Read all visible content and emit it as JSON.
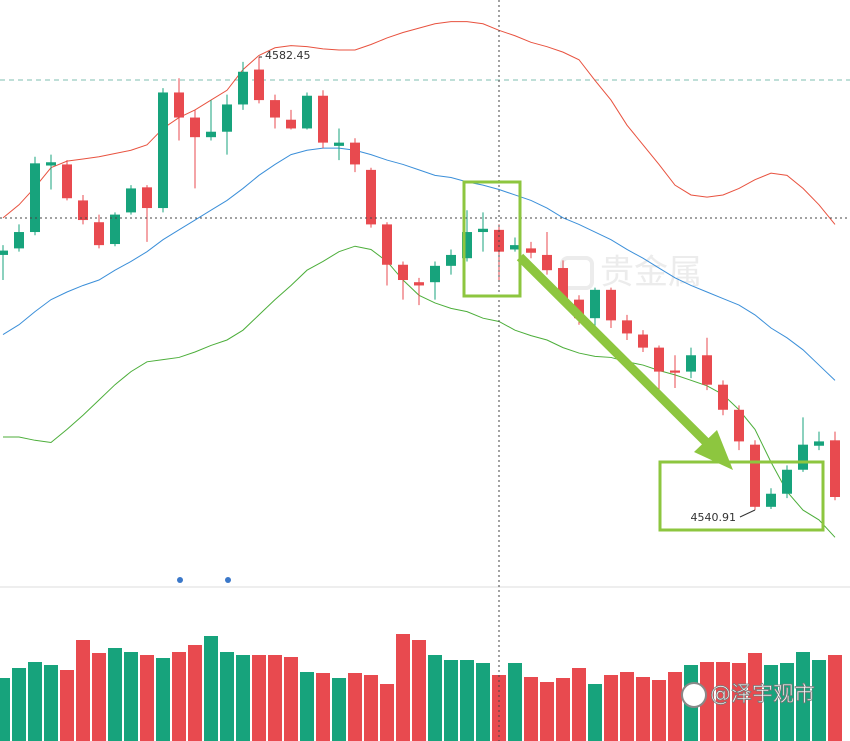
{
  "chart_data": {
    "type": "candlestick",
    "up_color": "#17a37c",
    "down_color": "#e84a4f",
    "ylim": [
      4534.03,
      4587.68
    ],
    "open": [
      4564.3,
      4564.9,
      4566.4,
      4572.5,
      4572.6,
      4569.3,
      4567.3,
      4565.3,
      4568.2,
      4570.5,
      4568.6,
      4579.2,
      4576.9,
      4575.1,
      4575.6,
      4578.1,
      4581.3,
      4578.5,
      4576.7,
      4575.9,
      4578.9,
      4574.3,
      4574.6,
      4572.1,
      4567.1,
      4563.4,
      4561.8,
      4561.8,
      4563.3,
      4564.0,
      4566.4,
      4566.6,
      4564.8,
      4564.9,
      4564.3,
      4563.1,
      4560.2,
      4558.5,
      4561.1,
      4558.3,
      4557.0,
      4555.8,
      4553.7,
      4553.6,
      4555.1,
      4552.4,
      4550.1,
      4546.9,
      4541.2,
      4542.4,
      4544.6,
      4546.8,
      4547.3
    ],
    "high": [
      4565.2,
      4567.1,
      4573.3,
      4573.5,
      4573.0,
      4569.8,
      4568.0,
      4568.2,
      4570.7,
      4570.7,
      4579.6,
      4580.5,
      4577.6,
      4578.5,
      4579.0,
      4582.0,
      4582.45,
      4579.0,
      4577.6,
      4579.2,
      4579.4,
      4575.9,
      4575.0,
      4572.3,
      4567.3,
      4563.7,
      4562.2,
      4563.7,
      4564.8,
      4568.4,
      4568.2,
      4567.1,
      4565.9,
      4565.5,
      4566.4,
      4563.8,
      4560.6,
      4561.3,
      4561.3,
      4558.8,
      4557.4,
      4556.0,
      4555.1,
      4555.8,
      4556.7,
      4552.8,
      4550.5,
      4547.3,
      4542.9,
      4545.0,
      4549.4,
      4548.1,
      4548.1
    ],
    "low": [
      4562.0,
      4564.6,
      4566.1,
      4570.3,
      4569.3,
      4567.1,
      4564.9,
      4565.1,
      4568.0,
      4565.5,
      4568.2,
      4574.8,
      4570.4,
      4574.8,
      4573.5,
      4577.6,
      4578.2,
      4575.9,
      4575.8,
      4575.8,
      4574.1,
      4573.0,
      4571.9,
      4566.8,
      4561.5,
      4560.2,
      4559.7,
      4560.2,
      4562.5,
      4563.7,
      4564.6,
      4562.0,
      4564.6,
      4564.0,
      4562.5,
      4559.7,
      4557.9,
      4557.4,
      4557.6,
      4556.5,
      4555.4,
      4551.6,
      4552.1,
      4553.0,
      4551.9,
      4549.6,
      4546.4,
      4540.91,
      4541.0,
      4542.0,
      4544.4,
      4546.4,
      4541.8
    ],
    "close": [
      4564.7,
      4566.4,
      4572.7,
      4572.8,
      4569.5,
      4567.5,
      4565.2,
      4568.0,
      4570.4,
      4568.6,
      4579.2,
      4576.9,
      4575.1,
      4575.6,
      4578.1,
      4581.1,
      4578.5,
      4576.9,
      4575.9,
      4578.9,
      4574.6,
      4574.6,
      4572.6,
      4567.1,
      4563.4,
      4562.0,
      4561.5,
      4563.3,
      4564.3,
      4566.4,
      4566.7,
      4564.6,
      4565.2,
      4564.5,
      4562.9,
      4560.2,
      4558.5,
      4561.1,
      4558.3,
      4557.1,
      4555.8,
      4553.6,
      4553.5,
      4555.1,
      4552.4,
      4550.1,
      4547.2,
      4541.2,
      4542.4,
      4544.6,
      4546.9,
      4547.2,
      4542.1
    ],
    "lines": [
      {
        "color": "#e8523f",
        "values": [
          4567.7,
          4568.9,
          4570.5,
          4572.3,
          4572.9,
          4573.1,
          4573.3,
          4573.6,
          4573.9,
          4574.4,
          4575.9,
          4576.9,
          4577.6,
          4578.5,
          4579.4,
          4581.3,
          4582.6,
          4583.3,
          4583.5,
          4583.4,
          4583.2,
          4583.1,
          4583.1,
          4583.6,
          4584.2,
          4584.7,
          4585.1,
          4585.5,
          4585.7,
          4585.7,
          4585.5,
          4584.9,
          4584.4,
          4583.8,
          4583.4,
          4582.9,
          4582.2,
          4580.3,
          4578.5,
          4576.2,
          4574.4,
          4572.6,
          4570.7,
          4569.8,
          4569.6,
          4569.8,
          4570.4,
          4571.2,
          4571.8,
          4571.6,
          4570.4,
          4568.9,
          4567.1
        ]
      },
      {
        "color": "#3b8fd9",
        "values": [
          4557.0,
          4557.9,
          4559.1,
          4560.2,
          4560.9,
          4561.5,
          4562.0,
          4562.9,
          4563.7,
          4564.6,
          4565.7,
          4566.6,
          4567.5,
          4568.4,
          4569.3,
          4570.4,
          4571.6,
          4572.6,
          4573.5,
          4573.9,
          4574.1,
          4574.1,
          4573.9,
          4573.5,
          4573.0,
          4572.6,
          4572.1,
          4571.6,
          4571.4,
          4571.0,
          4570.7,
          4570.3,
          4569.8,
          4569.3,
          4568.6,
          4567.7,
          4567.1,
          4566.4,
          4565.7,
          4564.8,
          4564.0,
          4563.1,
          4562.2,
          4561.5,
          4560.9,
          4560.3,
          4559.7,
          4558.8,
          4557.6,
          4556.7,
          4555.6,
          4554.2,
          4552.8
        ]
      },
      {
        "color": "#4cae3a",
        "values": [
          4547.6,
          4547.6,
          4547.3,
          4547.1,
          4548.3,
          4549.6,
          4551.0,
          4552.4,
          4553.6,
          4554.5,
          4554.7,
          4554.9,
          4555.4,
          4556.0,
          4556.5,
          4557.4,
          4558.8,
          4560.2,
          4561.5,
          4562.9,
          4563.7,
          4564.6,
          4565.1,
          4564.8,
          4563.7,
          4562.0,
          4560.6,
          4559.9,
          4559.4,
          4559.1,
          4558.5,
          4558.2,
          4557.4,
          4556.9,
          4556.5,
          4555.8,
          4555.3,
          4555.0,
          4554.9,
          4554.5,
          4554.2,
          4553.7,
          4553.3,
          4552.8,
          4552.3,
          4551.5,
          4550.1,
          4548.3,
          4545.3,
          4542.6,
          4540.9,
          4540.0,
          4538.4
        ]
      }
    ],
    "volume": {
      "ylim": [
        0,
        141
      ],
      "values": [
        63,
        73,
        79,
        76,
        71,
        101,
        88,
        93,
        89,
        86,
        83,
        89,
        96,
        105,
        89,
        86,
        86,
        86,
        84,
        69,
        68,
        63,
        68,
        66,
        57,
        107,
        101,
        86,
        81,
        81,
        78,
        66,
        78,
        64,
        59,
        63,
        73,
        57,
        66,
        69,
        64,
        61,
        69,
        76,
        79,
        79,
        78,
        88,
        76,
        78,
        89,
        81,
        86
      ]
    },
    "watermark": "贵金属",
    "credit": "@泽宇观市"
  }
}
